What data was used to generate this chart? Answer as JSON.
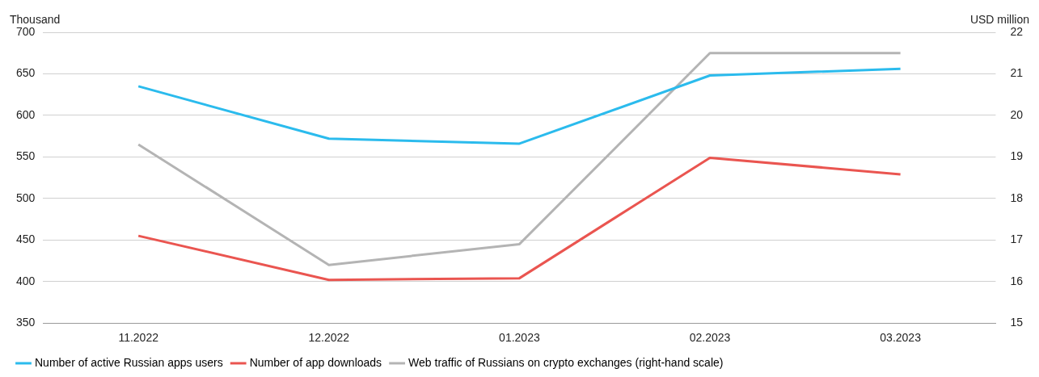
{
  "chart_data": {
    "type": "line",
    "ylabel": "Thousand",
    "y2label": "USD million",
    "categories": [
      "11.2022",
      "12.2022",
      "01.2023",
      "02.2023",
      "03.2023"
    ],
    "series": [
      {
        "name": "Number of active Russian apps users",
        "color": "#2bbbed",
        "values": [
          635,
          572,
          566,
          648,
          656
        ]
      },
      {
        "name": "Number of app downloads",
        "color": "#ea5550",
        "values": [
          455,
          402,
          404,
          549,
          529
        ]
      },
      {
        "name": "Web traffic of Russians on crypto exchanges (right-hand scale)",
        "color": "#b4b4b4",
        "axis": "y2",
        "values": [
          19.3,
          16.4,
          16.9,
          21.5,
          21.5
        ]
      }
    ],
    "ylim": [
      350,
      700
    ],
    "yticks": [
      350,
      400,
      450,
      500,
      550,
      600,
      650,
      700
    ],
    "y2lim": [
      15,
      22
    ],
    "y2ticks": [
      15,
      16,
      17,
      18,
      19,
      20,
      21,
      22
    ],
    "grid": "y",
    "legend": "bottom",
    "marker": "none",
    "line_style": "solid"
  }
}
